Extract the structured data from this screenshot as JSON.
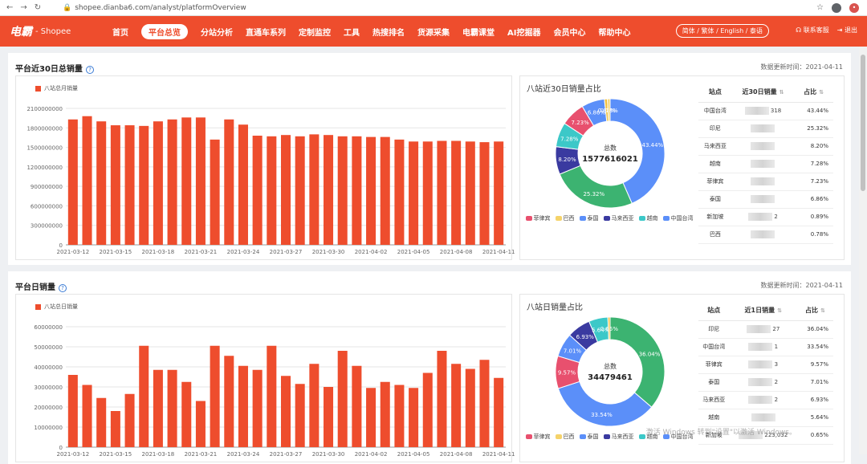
{
  "browser": {
    "url": "shopee.dianba6.com/analyst/platformOverview"
  },
  "nav": {
    "logo_text": "电霸",
    "logo_sub": "- Shopee",
    "items": [
      "首页",
      "平台总览",
      "分站分析",
      "直通车系列",
      "定制监控",
      "工具",
      "热搜排名",
      "货源采集",
      "电霸课堂",
      "AI挖掘器",
      "会员中心",
      "帮助中心"
    ],
    "active_index": 1,
    "lang": "简体 / 繁体 / English / 泰语",
    "contact": "联系客服",
    "logout": "退出"
  },
  "panel1": {
    "title": "平台近30日总销量",
    "updated": "数据更新时间：2021-04-11",
    "pie_title": "八站近30日销量占比",
    "pie_center_label": "总数",
    "pie_center_value": "1577616021",
    "table_headers": [
      "站点",
      "近30日销量",
      "占比"
    ],
    "rows": [
      {
        "site": "中国台湾",
        "value": "318",
        "pct": "43.44%"
      },
      {
        "site": "印尼",
        "value": "",
        "pct": "25.32%"
      },
      {
        "site": "马来西亚",
        "value": "",
        "pct": "8.20%"
      },
      {
        "site": "越南",
        "value": "",
        "pct": "7.28%"
      },
      {
        "site": "菲律宾",
        "value": "",
        "pct": "7.23%"
      },
      {
        "site": "泰国",
        "value": "",
        "pct": "6.86%"
      },
      {
        "site": "新加坡",
        "value": "2",
        "pct": "0.89%"
      },
      {
        "site": "巴西",
        "value": "",
        "pct": "0.78%"
      }
    ]
  },
  "panel2": {
    "title": "平台日销量",
    "updated": "数据更新时间：2021-04-11",
    "pie_title": "八站日销量占比",
    "pie_center_label": "总数",
    "pie_center_value": "34479461",
    "table_headers": [
      "站点",
      "近1日销量",
      "占比"
    ],
    "rows": [
      {
        "site": "印尼",
        "value": "27",
        "pct": "36.04%"
      },
      {
        "site": "中国台湾",
        "value": "1",
        "pct": "33.54%"
      },
      {
        "site": "菲律宾",
        "value": "3",
        "pct": "9.57%"
      },
      {
        "site": "泰国",
        "value": "2",
        "pct": "7.01%"
      },
      {
        "site": "马来西亚",
        "value": "2",
        "pct": "6.93%"
      },
      {
        "site": "越南",
        "value": "",
        "pct": "5.64%"
      },
      {
        "site": "新加坡",
        "value": "223,032",
        "pct": "0.65%"
      }
    ]
  },
  "pie_legend": [
    "菲律宾",
    "巴西",
    "泰国",
    "马来西亚",
    "越南",
    "中国台湾"
  ],
  "pie_colors": {
    "中国台湾": "#5b8ff9",
    "印尼": "#3cb371",
    "菲律宾": "#e8506e",
    "巴西": "#f5d36a",
    "泰国": "#5b8ff9",
    "马来西亚": "#3a3aa0",
    "越南": "#3cc8c8",
    "新加坡": "#f0c040"
  },
  "watermark": "激活 Windows 转到\"设置\"以激活 Windows。",
  "chart_data": [
    {
      "type": "bar",
      "title": "平台近30日总销量",
      "series": [
        {
          "name": "八站总月销量",
          "values": [
            1930000000,
            1980000000,
            1900000000,
            1840000000,
            1840000000,
            1830000000,
            1900000000,
            1930000000,
            1960000000,
            1960000000,
            1620000000,
            1930000000,
            1850000000,
            1680000000,
            1670000000,
            1690000000,
            1670000000,
            1700000000,
            1690000000,
            1670000000,
            1670000000,
            1660000000,
            1660000000,
            1620000000,
            1590000000,
            1590000000,
            1600000000,
            1600000000,
            1590000000,
            1580000000,
            1590000000
          ]
        }
      ],
      "categories": [
        "2021-03-12",
        "2021-03-13",
        "2021-03-14",
        "2021-03-15",
        "2021-03-16",
        "2021-03-17",
        "2021-03-18",
        "2021-03-19",
        "2021-03-20",
        "2021-03-21",
        "2021-03-22",
        "2021-03-23",
        "2021-03-24",
        "2021-03-25",
        "2021-03-26",
        "2021-03-27",
        "2021-03-28",
        "2021-03-29",
        "2021-03-30",
        "2021-03-31",
        "2021-04-01",
        "2021-04-02",
        "2021-04-03",
        "2021-04-04",
        "2021-04-05",
        "2021-04-06",
        "2021-04-07",
        "2021-04-08",
        "2021-04-09",
        "2021-04-10",
        "2021-04-11"
      ],
      "x_tick_labels": [
        "2021-03-12",
        "2021-03-15",
        "2021-03-18",
        "2021-03-21",
        "2021-03-24",
        "2021-03-27",
        "2021-03-30",
        "2021-04-02",
        "2021-04-05",
        "2021-04-08",
        "2021-04-11"
      ],
      "y_ticks": [
        0,
        300000000,
        600000000,
        900000000,
        1200000000,
        1500000000,
        1800000000,
        2100000000
      ],
      "ylim": [
        0,
        2100000000
      ],
      "color": "#ee4d2d"
    },
    {
      "type": "bar",
      "title": "平台日销量",
      "series": [
        {
          "name": "八站总日销量",
          "values": [
            36000000,
            31000000,
            24500000,
            18000000,
            26500000,
            50500000,
            38500000,
            38500000,
            32500000,
            23000000,
            50500000,
            45500000,
            40500000,
            38500000,
            50500000,
            35500000,
            31500000,
            41500000,
            30000000,
            48000000,
            40500000,
            29500000,
            32500000,
            31000000,
            29500000,
            37000000,
            48000000,
            41500000,
            39000000,
            43500000,
            34500000
          ]
        }
      ],
      "categories": [
        "2021-03-12",
        "2021-03-13",
        "2021-03-14",
        "2021-03-15",
        "2021-03-16",
        "2021-03-17",
        "2021-03-18",
        "2021-03-19",
        "2021-03-20",
        "2021-03-21",
        "2021-03-22",
        "2021-03-23",
        "2021-03-24",
        "2021-03-25",
        "2021-03-26",
        "2021-03-27",
        "2021-03-28",
        "2021-03-29",
        "2021-03-30",
        "2021-03-31",
        "2021-04-01",
        "2021-04-02",
        "2021-04-03",
        "2021-04-04",
        "2021-04-05",
        "2021-04-06",
        "2021-04-07",
        "2021-04-08",
        "2021-04-09",
        "2021-04-10",
        "2021-04-11"
      ],
      "x_tick_labels": [
        "2021-03-12",
        "2021-03-15",
        "2021-03-18",
        "2021-03-21",
        "2021-03-24",
        "2021-03-27",
        "2021-03-30",
        "2021-04-02",
        "2021-04-05",
        "2021-04-08",
        "2021-04-11"
      ],
      "y_ticks": [
        0,
        10000000,
        20000000,
        30000000,
        40000000,
        50000000,
        60000000
      ],
      "ylim": [
        0,
        60000000
      ],
      "color": "#ee4d2d"
    },
    {
      "type": "pie",
      "title": "八站近30日销量占比",
      "categories": [
        "中国台湾",
        "印尼",
        "马来西亚",
        "越南",
        "菲律宾",
        "泰国",
        "新加坡",
        "巴西"
      ],
      "values": [
        43.44,
        25.32,
        8.2,
        7.28,
        7.23,
        6.86,
        0.89,
        0.78
      ]
    },
    {
      "type": "pie",
      "title": "八站日销量占比",
      "categories": [
        "印尼",
        "中国台湾",
        "菲律宾",
        "泰国",
        "马来西亚",
        "越南",
        "新加坡"
      ],
      "values": [
        36.04,
        33.54,
        9.57,
        7.01,
        6.93,
        5.64,
        0.65
      ]
    }
  ]
}
